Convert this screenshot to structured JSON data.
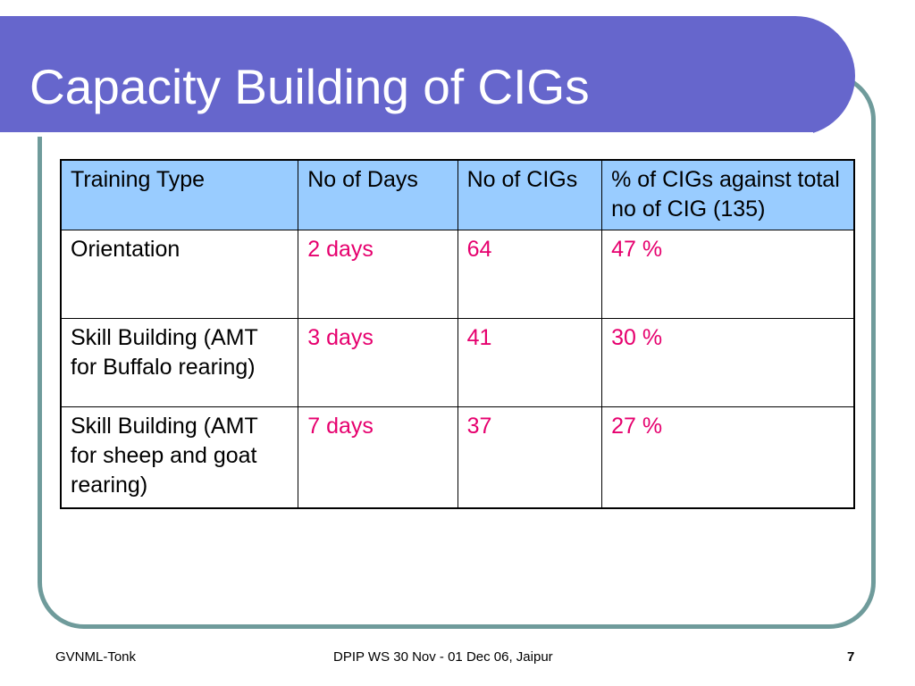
{
  "slide": {
    "title": "Capacity Building of CIGs",
    "colors": {
      "title_bar": "#6666cc",
      "frame": "#6f9b9b",
      "header_fill": "#99ccff",
      "value_text": "#e6006e"
    }
  },
  "table": {
    "headers": [
      "Training Type",
      "No of Days",
      "No of CIGs",
      "% of CIGs against total no of CIG (135)"
    ],
    "rows": [
      [
        "Orientation",
        "2 days",
        "64",
        "47 %"
      ],
      [
        "Skill Building (AMT for Buffalo rearing)",
        "3 days",
        "41",
        "30 %"
      ],
      [
        "Skill Building (AMT for sheep and goat rearing)",
        "7 days",
        "37",
        "27 %"
      ]
    ]
  },
  "footer": {
    "left": "GVNML-Tonk",
    "center": "DPIP WS 30 Nov - 01 Dec 06, Jaipur",
    "page_number": "7"
  }
}
